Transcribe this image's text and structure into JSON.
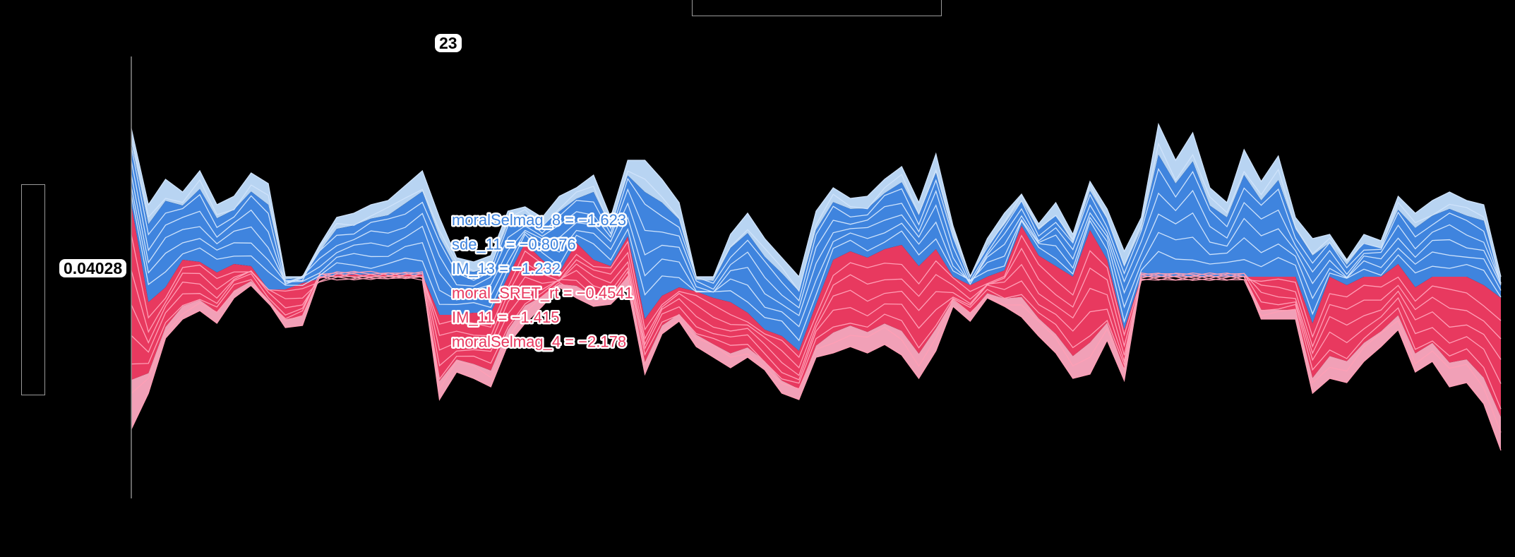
{
  "sample_count_label": "23",
  "base_value_label": "0.04028",
  "colors": {
    "pos_dark": "#e8395f",
    "pos_light": "#f1a0b7",
    "neg_dark": "#3f84de",
    "neg_light": "#b8d4f2",
    "pos_lines": "#ff9fb6",
    "neg_lines": "#cfe3fb",
    "axis": "#888888"
  },
  "feature_labels": [
    {
      "text": "moralSelmag_8 = −1.623",
      "sign": "neg"
    },
    {
      "text": "sde_11 = −0.8076",
      "sign": "neg"
    },
    {
      "text": "IM_13 = −1.232",
      "sign": "neg"
    },
    {
      "text": "moral_SRET_rt = −0.4541",
      "sign": "pos"
    },
    {
      "text": "IM_11 = −1.415",
      "sign": "pos"
    },
    {
      "text": "moralSelmag_4 = −2.178",
      "sign": "pos"
    }
  ],
  "chart_data": {
    "type": "area",
    "base_value": 0.04028,
    "samples": [
      {
        "top": 0.7,
        "mid": 0.34,
        "bot": -0.72
      },
      {
        "top": 0.34,
        "mid": -0.12,
        "bot": -0.55
      },
      {
        "top": 0.46,
        "mid": -0.05,
        "bot": -0.29
      },
      {
        "top": 0.4,
        "mid": 0.08,
        "bot": -0.2
      },
      {
        "top": 0.5,
        "mid": 0.07,
        "bot": -0.16
      },
      {
        "top": 0.34,
        "mid": 0.02,
        "bot": -0.22
      },
      {
        "top": 0.38,
        "mid": 0.06,
        "bot": -0.1
      },
      {
        "top": 0.49,
        "mid": 0.05,
        "bot": -0.04
      },
      {
        "top": 0.44,
        "mid": -0.06,
        "bot": -0.12
      },
      {
        "top": 0.0,
        "mid": -0.06,
        "bot": -0.24
      },
      {
        "top": 0.0,
        "mid": -0.03,
        "bot": -0.23
      },
      {
        "top": 0.15,
        "mid": -0.01,
        "bot": 0.0
      },
      {
        "top": 0.28,
        "mid": 0.01,
        "bot": 0.0
      },
      {
        "top": 0.3,
        "mid": 0.01,
        "bot": 0.0
      },
      {
        "top": 0.34,
        "mid": 0.01,
        "bot": 0.0
      },
      {
        "top": 0.36,
        "mid": 0.01,
        "bot": 0.0
      },
      {
        "top": 0.43,
        "mid": 0.01,
        "bot": 0.0
      },
      {
        "top": 0.5,
        "mid": 0.01,
        "bot": 0.0
      },
      {
        "top": 0.28,
        "mid": -0.18,
        "bot": -0.58
      },
      {
        "top": 0.09,
        "mid": -0.18,
        "bot": -0.45
      },
      {
        "top": 0.07,
        "mid": -0.17,
        "bot": -0.48
      },
      {
        "top": 0.1,
        "mid": -0.17,
        "bot": -0.52
      },
      {
        "top": 0.31,
        "mid": 0.0,
        "bot": -0.32
      },
      {
        "top": 0.33,
        "mid": 0.16,
        "bot": -0.22
      },
      {
        "top": 0.28,
        "mid": 0.08,
        "bot": -0.14
      },
      {
        "top": 0.38,
        "mid": 0.02,
        "bot": -0.05
      },
      {
        "top": 0.42,
        "mid": 0.16,
        "bot": -0.1
      },
      {
        "top": 0.48,
        "mid": 0.08,
        "bot": -0.14
      },
      {
        "top": 0.28,
        "mid": 0.05,
        "bot": -0.13
      },
      {
        "top": 0.55,
        "mid": 0.19,
        "bot": -0.05
      },
      {
        "top": 0.55,
        "mid": -0.2,
        "bot": -0.46
      },
      {
        "top": 0.46,
        "mid": -0.09,
        "bot": -0.27
      },
      {
        "top": 0.35,
        "mid": -0.05,
        "bot": -0.21
      },
      {
        "top": 0.0,
        "mid": -0.07,
        "bot": -0.33
      },
      {
        "top": 0.0,
        "mid": -0.1,
        "bot": -0.38
      },
      {
        "top": 0.2,
        "mid": -0.12,
        "bot": -0.43
      },
      {
        "top": 0.3,
        "mid": -0.17,
        "bot": -0.38
      },
      {
        "top": 0.18,
        "mid": -0.25,
        "bot": -0.44
      },
      {
        "top": 0.09,
        "mid": -0.28,
        "bot": -0.55
      },
      {
        "top": 0.0,
        "mid": -0.35,
        "bot": -0.58
      },
      {
        "top": 0.31,
        "mid": -0.13,
        "bot": -0.38
      },
      {
        "top": 0.42,
        "mid": 0.08,
        "bot": -0.36
      },
      {
        "top": 0.37,
        "mid": 0.12,
        "bot": -0.33
      },
      {
        "top": 0.38,
        "mid": 0.09,
        "bot": -0.36
      },
      {
        "top": 0.46,
        "mid": 0.13,
        "bot": -0.32
      },
      {
        "top": 0.52,
        "mid": 0.15,
        "bot": -0.37
      },
      {
        "top": 0.35,
        "mid": 0.05,
        "bot": -0.48
      },
      {
        "top": 0.58,
        "mid": 0.13,
        "bot": -0.35
      },
      {
        "top": 0.24,
        "mid": 0.0,
        "bot": -0.14
      },
      {
        "top": 0.0,
        "mid": -0.04,
        "bot": -0.21
      },
      {
        "top": 0.18,
        "mid": 0.0,
        "bot": -0.1
      },
      {
        "top": 0.3,
        "mid": 0.03,
        "bot": -0.14
      },
      {
        "top": 0.39,
        "mid": 0.24,
        "bot": -0.19
      },
      {
        "top": 0.25,
        "mid": 0.1,
        "bot": -0.28
      },
      {
        "top": 0.35,
        "mid": 0.05,
        "bot": -0.36
      },
      {
        "top": 0.2,
        "mid": 0.0,
        "bot": -0.48
      },
      {
        "top": 0.45,
        "mid": 0.22,
        "bot": -0.46
      },
      {
        "top": 0.32,
        "mid": 0.08,
        "bot": -0.3
      },
      {
        "top": 0.12,
        "mid": -0.25,
        "bot": -0.49
      },
      {
        "top": 0.28,
        "mid": 0.0,
        "bot": 0.0
      },
      {
        "top": 0.72,
        "mid": 0.0,
        "bot": 0.0
      },
      {
        "top": 0.55,
        "mid": 0.0,
        "bot": 0.0
      },
      {
        "top": 0.68,
        "mid": 0.0,
        "bot": 0.0
      },
      {
        "top": 0.42,
        "mid": 0.0,
        "bot": 0.0
      },
      {
        "top": 0.35,
        "mid": 0.0,
        "bot": 0.0
      },
      {
        "top": 0.6,
        "mid": 0.0,
        "bot": 0.0
      },
      {
        "top": 0.45,
        "mid": 0.0,
        "bot": -0.2
      },
      {
        "top": 0.57,
        "mid": 0.0,
        "bot": -0.2
      },
      {
        "top": 0.28,
        "mid": 0.0,
        "bot": -0.2
      },
      {
        "top": 0.18,
        "mid": -0.22,
        "bot": -0.55
      },
      {
        "top": 0.2,
        "mid": 0.0,
        "bot": -0.48
      },
      {
        "top": 0.08,
        "mid": -0.04,
        "bot": -0.5
      },
      {
        "top": 0.2,
        "mid": 0.0,
        "bot": -0.4
      },
      {
        "top": 0.17,
        "mid": 0.0,
        "bot": -0.33
      },
      {
        "top": 0.38,
        "mid": 0.06,
        "bot": -0.25
      },
      {
        "top": 0.3,
        "mid": -0.05,
        "bot": -0.45
      },
      {
        "top": 0.36,
        "mid": 0.0,
        "bot": -0.4
      },
      {
        "top": 0.4,
        "mid": 0.0,
        "bot": -0.52
      },
      {
        "top": 0.36,
        "mid": 0.0,
        "bot": -0.5
      },
      {
        "top": 0.34,
        "mid": -0.04,
        "bot": -0.6
      },
      {
        "top": 0.0,
        "mid": -0.1,
        "bot": -0.82
      }
    ]
  }
}
